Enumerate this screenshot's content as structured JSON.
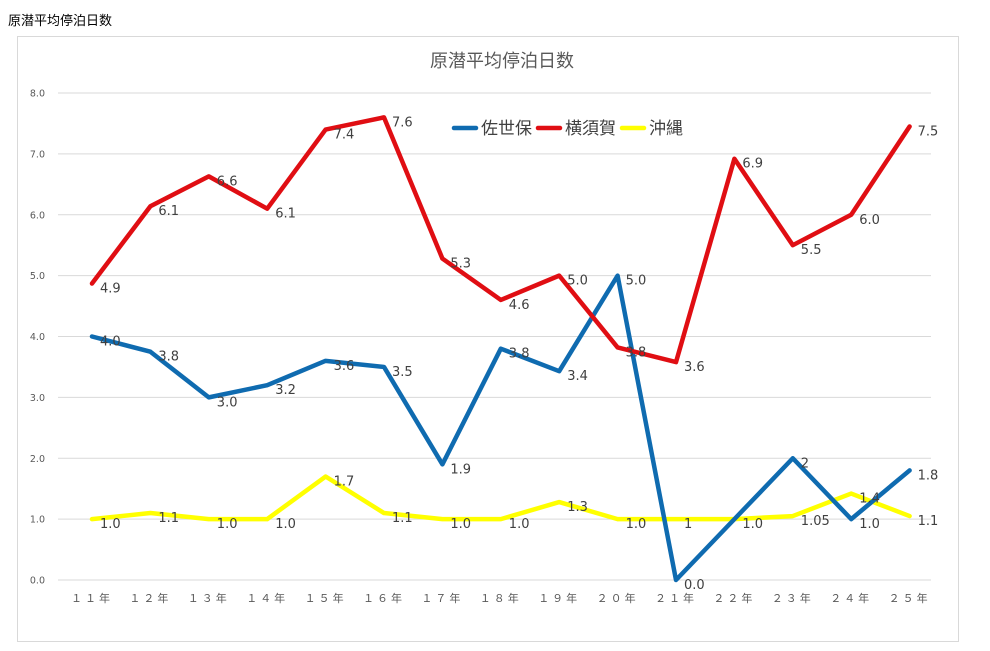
{
  "page_heading": "原潜平均停泊日数",
  "chart_data": {
    "type": "line",
    "title": "原潜平均停泊日数",
    "xlabel": "",
    "ylabel": "",
    "ylim": [
      0,
      8
    ],
    "yticks": [
      "0.0",
      "1.0",
      "2.0",
      "3.0",
      "4.0",
      "5.0",
      "6.0",
      "7.0",
      "8.0"
    ],
    "categories": [
      "１１年",
      "１２年",
      "１３年",
      "１４年",
      "１５年",
      "１６年",
      "１７年",
      "１８年",
      "１９年",
      "２０年",
      "２１年",
      "２２年",
      "２３年",
      "２４年",
      "２５年"
    ],
    "grid": true,
    "legend_position": "top-right",
    "series": [
      {
        "name": "佐世保",
        "color": "#0f6bb0",
        "values": [
          4.0,
          3.75,
          3.0,
          3.2,
          3.6,
          3.5,
          1.9,
          3.8,
          3.43,
          5.0,
          0.0,
          1.0,
          2.0,
          1.0,
          1.8
        ],
        "labels": [
          "4.0",
          "3.8",
          "3.0",
          "3.2",
          "3.6",
          "3.5",
          "1.9",
          "3.8",
          "3.4",
          "5.0",
          "0.0",
          "",
          "2",
          "1.0",
          "1.8"
        ]
      },
      {
        "name": "横須賀",
        "color": "#e00e13",
        "values": [
          4.87,
          6.14,
          6.63,
          6.1,
          7.4,
          7.6,
          5.28,
          4.6,
          5.0,
          3.82,
          3.58,
          6.92,
          5.5,
          6.0,
          7.45
        ],
        "labels": [
          "4.9",
          "6.1",
          "6.6",
          "6.1",
          "7.4",
          "7.6",
          "5.3",
          "4.6",
          "5.0",
          "3.8",
          "3.6",
          "6.9",
          "5.5",
          "6.0",
          "7.5"
        ]
      },
      {
        "name": "沖縄",
        "color": "#ffff00",
        "values": [
          1.0,
          1.1,
          1.0,
          1.0,
          1.7,
          1.1,
          1.0,
          1.0,
          1.28,
          1.0,
          1.0,
          1.0,
          1.05,
          1.42,
          1.05
        ],
        "labels": [
          "1.0",
          "1.1",
          "1.0",
          "1.0",
          "1.7",
          "1.1",
          "1.0",
          "1.0",
          "1.3",
          "1.0",
          "1",
          "1.0",
          "1.05",
          "1.4",
          "1.1"
        ]
      }
    ]
  }
}
